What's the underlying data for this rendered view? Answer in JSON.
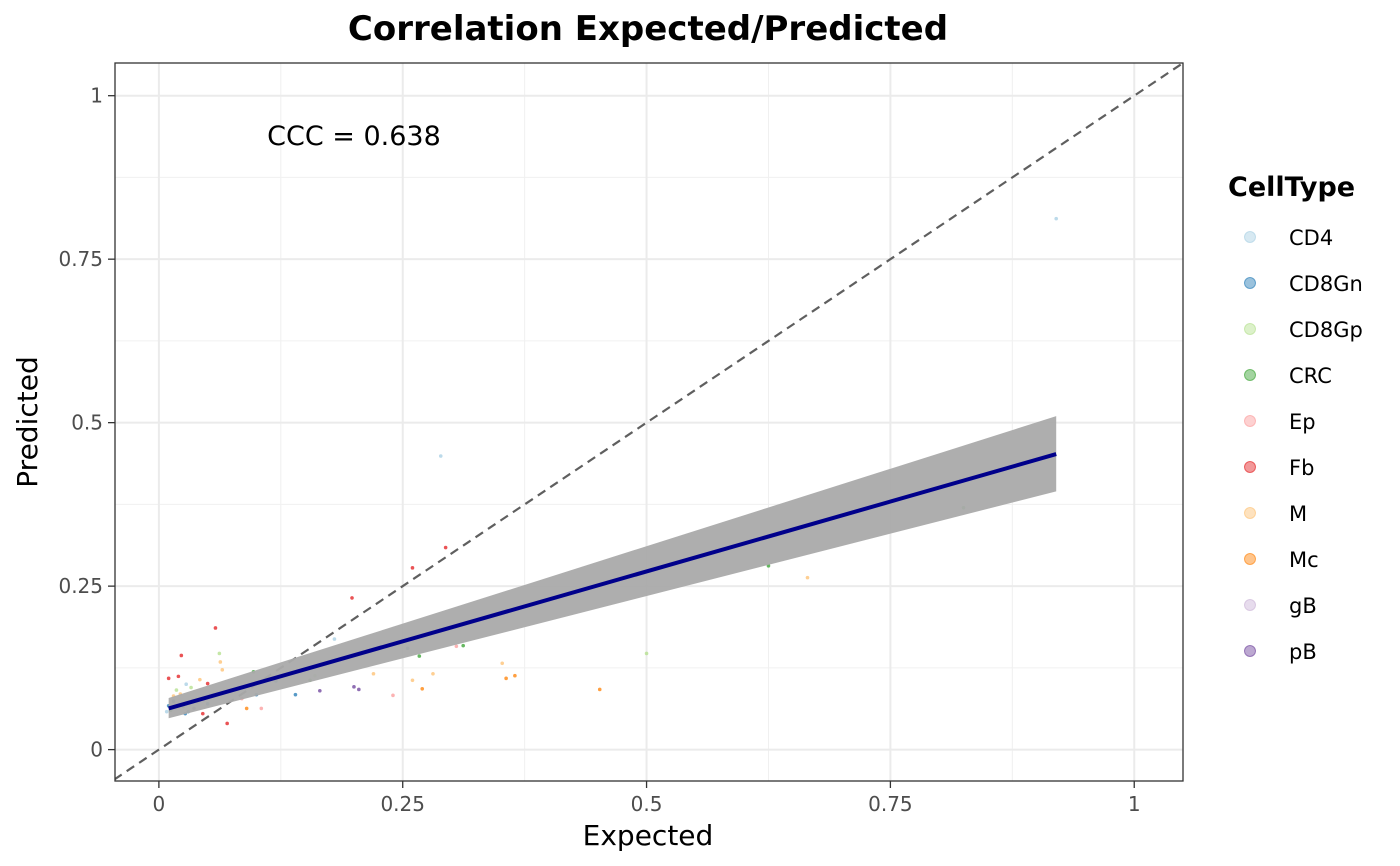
{
  "chart_data": {
    "type": "scatter",
    "title": "Correlation Expected/Predicted",
    "xlabel": "Expected",
    "ylabel": "Predicted",
    "xlim": [
      -0.045,
      1.05
    ],
    "ylim": [
      -0.048,
      1.05
    ],
    "x_ticks": [
      0,
      0.25,
      0.5,
      0.75,
      1
    ],
    "x_tick_labels": [
      "0",
      "0.25",
      "0.5",
      "0.75",
      "1"
    ],
    "y_ticks": [
      0,
      0.25,
      0.5,
      0.75,
      1
    ],
    "y_tick_labels": [
      "0",
      "0.25",
      "0.5",
      "0.75",
      "1"
    ],
    "grid": true,
    "identity_line": {
      "style": "dashed",
      "color": "#5f5f5f"
    },
    "regression": {
      "color": "#00008b",
      "band_color": "#aaaaaa",
      "x_start": 0.01,
      "x_end": 0.92,
      "y_start": 0.063,
      "y_end": 0.452,
      "band_start": [
        0.048,
        0.079
      ],
      "band_end": [
        0.395,
        0.51
      ]
    },
    "annotation": {
      "text": "CCC = 0.638",
      "x": 0.2,
      "y": 0.94
    },
    "legend": {
      "title": "CellType",
      "position": "right",
      "entries": [
        {
          "name": "CD4",
          "color": "#a6cee3"
        },
        {
          "name": "CD8Gn",
          "color": "#1f78b4"
        },
        {
          "name": "CD8Gp",
          "color": "#b2df8a"
        },
        {
          "name": "CRC",
          "color": "#33a02c"
        },
        {
          "name": "Ep",
          "color": "#fb9a99"
        },
        {
          "name": "Fb",
          "color": "#e31a1c"
        },
        {
          "name": "M",
          "color": "#fdbf6f"
        },
        {
          "name": "Mc",
          "color": "#ff7f00"
        },
        {
          "name": "gB",
          "color": "#cab2d6"
        },
        {
          "name": "pB",
          "color": "#6a3d9a"
        }
      ]
    },
    "points": [
      {
        "x": 0.92,
        "y": 0.812,
        "c": "CD4"
      },
      {
        "x": 0.289,
        "y": 0.449,
        "c": "CD4"
      },
      {
        "x": 0.625,
        "y": 0.281,
        "c": "CRC"
      },
      {
        "x": 0.665,
        "y": 0.263,
        "c": "M"
      },
      {
        "x": 0.825,
        "y": 0.37,
        "c": "CRC"
      },
      {
        "x": 0.5,
        "y": 0.147,
        "c": "CD8Gp"
      },
      {
        "x": 0.452,
        "y": 0.092,
        "c": "Mc"
      },
      {
        "x": 0.365,
        "y": 0.113,
        "c": "Mc"
      },
      {
        "x": 0.356,
        "y": 0.109,
        "c": "Mc"
      },
      {
        "x": 0.352,
        "y": 0.132,
        "c": "M"
      },
      {
        "x": 0.312,
        "y": 0.159,
        "c": "CRC"
      },
      {
        "x": 0.305,
        "y": 0.158,
        "c": "Ep"
      },
      {
        "x": 0.294,
        "y": 0.309,
        "c": "Fb"
      },
      {
        "x": 0.281,
        "y": 0.116,
        "c": "M"
      },
      {
        "x": 0.267,
        "y": 0.143,
        "c": "CRC"
      },
      {
        "x": 0.27,
        "y": 0.093,
        "c": "Mc"
      },
      {
        "x": 0.26,
        "y": 0.278,
        "c": "Fb"
      },
      {
        "x": 0.26,
        "y": 0.106,
        "c": "M"
      },
      {
        "x": 0.255,
        "y": 0.155,
        "c": "CD8Gn"
      },
      {
        "x": 0.24,
        "y": 0.083,
        "c": "Ep"
      },
      {
        "x": 0.22,
        "y": 0.116,
        "c": "M"
      },
      {
        "x": 0.198,
        "y": 0.232,
        "c": "Fb"
      },
      {
        "x": 0.2,
        "y": 0.096,
        "c": "pB"
      },
      {
        "x": 0.205,
        "y": 0.092,
        "c": "pB"
      },
      {
        "x": 0.18,
        "y": 0.169,
        "c": "CD4"
      },
      {
        "x": 0.165,
        "y": 0.09,
        "c": "pB"
      },
      {
        "x": 0.155,
        "y": 0.106,
        "c": "CRC"
      },
      {
        "x": 0.14,
        "y": 0.084,
        "c": "CD8Gn"
      },
      {
        "x": 0.16,
        "y": 0.113,
        "c": "CD8Gp"
      },
      {
        "x": 0.12,
        "y": 0.105,
        "c": "CD8Gn"
      },
      {
        "x": 0.105,
        "y": 0.063,
        "c": "Ep"
      },
      {
        "x": 0.1,
        "y": 0.084,
        "c": "CD8Gn"
      },
      {
        "x": 0.097,
        "y": 0.119,
        "c": "CRC"
      },
      {
        "x": 0.09,
        "y": 0.063,
        "c": "Mc"
      },
      {
        "x": 0.085,
        "y": 0.078,
        "c": "Ep"
      },
      {
        "x": 0.07,
        "y": 0.04,
        "c": "Fb"
      },
      {
        "x": 0.063,
        "y": 0.134,
        "c": "M"
      },
      {
        "x": 0.062,
        "y": 0.147,
        "c": "CD8Gp"
      },
      {
        "x": 0.058,
        "y": 0.186,
        "c": "Fb"
      },
      {
        "x": 0.065,
        "y": 0.122,
        "c": "M"
      },
      {
        "x": 0.055,
        "y": 0.085,
        "c": "CD8Gp"
      },
      {
        "x": 0.05,
        "y": 0.101,
        "c": "Fb"
      },
      {
        "x": 0.05,
        "y": 0.07,
        "c": "CD8Gn"
      },
      {
        "x": 0.045,
        "y": 0.055,
        "c": "Fb"
      },
      {
        "x": 0.042,
        "y": 0.107,
        "c": "M"
      },
      {
        "x": 0.04,
        "y": 0.073,
        "c": "Mc"
      },
      {
        "x": 0.036,
        "y": 0.063,
        "c": "pB"
      },
      {
        "x": 0.033,
        "y": 0.095,
        "c": "CD8Gp"
      },
      {
        "x": 0.03,
        "y": 0.058,
        "c": "CD8Gn"
      },
      {
        "x": 0.028,
        "y": 0.1,
        "c": "CD4"
      },
      {
        "x": 0.025,
        "y": 0.066,
        "c": "CRC"
      },
      {
        "x": 0.023,
        "y": 0.144,
        "c": "Fb"
      },
      {
        "x": 0.022,
        "y": 0.085,
        "c": "M"
      },
      {
        "x": 0.02,
        "y": 0.112,
        "c": "Fb"
      },
      {
        "x": 0.018,
        "y": 0.091,
        "c": "CD8Gp"
      },
      {
        "x": 0.015,
        "y": 0.074,
        "c": "CD8Gn"
      },
      {
        "x": 0.012,
        "y": 0.06,
        "c": "CRC"
      },
      {
        "x": 0.01,
        "y": 0.109,
        "c": "Fb"
      },
      {
        "x": 0.01,
        "y": 0.067,
        "c": "CD8Gn"
      },
      {
        "x": 0.008,
        "y": 0.058,
        "c": "CD4"
      },
      {
        "x": 0.027,
        "y": 0.055,
        "c": "CD8Gn"
      },
      {
        "x": 0.015,
        "y": 0.082,
        "c": "M"
      }
    ]
  }
}
